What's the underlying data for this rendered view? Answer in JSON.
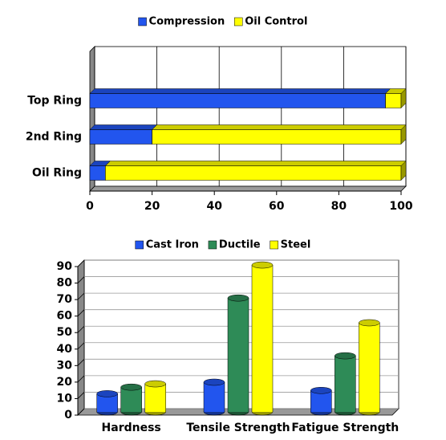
{
  "chart_data": [
    {
      "type": "bar",
      "orientation": "horizontal",
      "stacked": true,
      "categories": [
        "Top Ring",
        "2nd Ring",
        "Oil Ring"
      ],
      "series": [
        {
          "name": "Compression",
          "color": "#2255ee",
          "values": [
            95,
            20,
            5
          ]
        },
        {
          "name": "Oil Control",
          "color": "#ffff00",
          "values": [
            5,
            80,
            95
          ]
        }
      ],
      "xlim": [
        0,
        100
      ],
      "xticks": [
        0,
        20,
        40,
        60,
        80,
        100
      ],
      "grid": true,
      "legend": "top"
    },
    {
      "type": "column",
      "categories": [
        "Hardness",
        "Tensile Strength",
        "Fatigue Strength"
      ],
      "series": [
        {
          "name": "Cast Iron",
          "color": "#2255ee",
          "values": [
            11,
            18,
            13
          ]
        },
        {
          "name": "Ductile",
          "color": "#2e8b57",
          "values": [
            15,
            69,
            34
          ]
        },
        {
          "name": "Steel",
          "color": "#ffff00",
          "values": [
            17,
            89,
            54
          ]
        }
      ],
      "ylim": [
        0,
        90
      ],
      "yticks": [
        0,
        10,
        20,
        30,
        40,
        50,
        60,
        70,
        80,
        90
      ],
      "grid": true,
      "legend": "top"
    }
  ]
}
